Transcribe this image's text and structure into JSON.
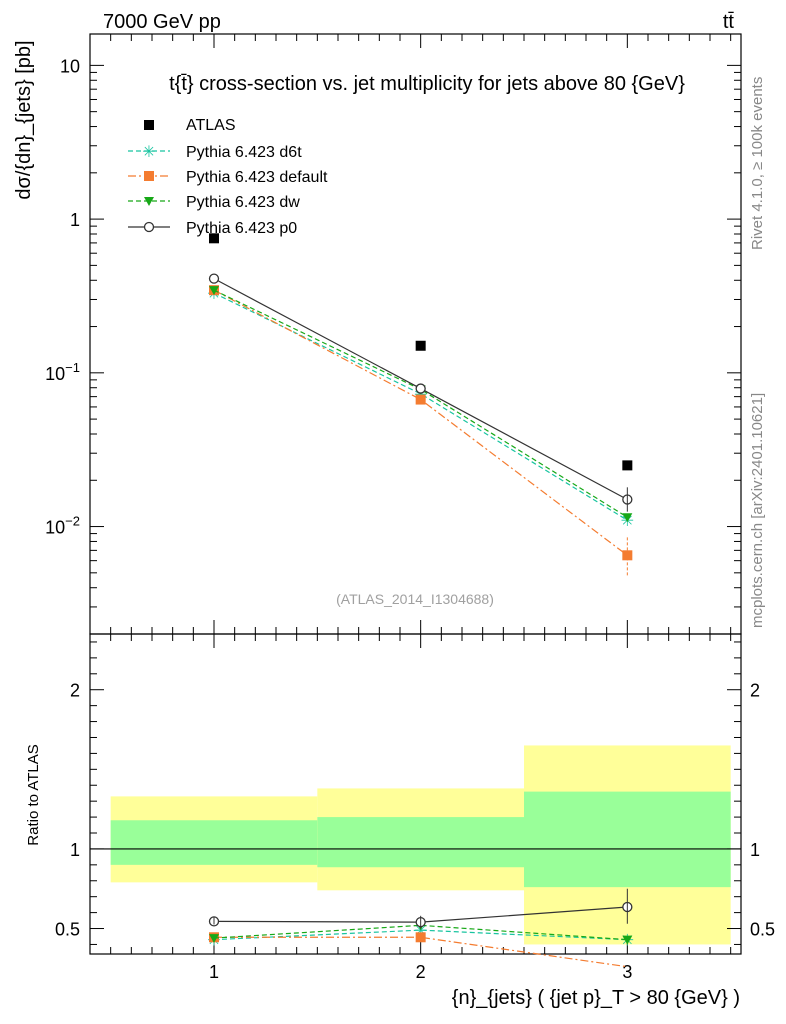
{
  "header": {
    "left": "7000 GeV pp",
    "right": "tt̄"
  },
  "side_labels": {
    "rivet": "Rivet 4.1.0, ≥ 100k events",
    "mcplots": "mcplots.cern.ch [arXiv:2401.10621]"
  },
  "watermark": "(ATLAS_2014_I1304688)",
  "legend": [
    {
      "label": "ATLAS",
      "color": "#000000",
      "marker": "square"
    },
    {
      "label": "Pythia 6.423 d6t",
      "color": "#18c4a0",
      "marker": "star"
    },
    {
      "label": "Pythia 6.423 default",
      "color": "#f47c30",
      "marker": "square"
    },
    {
      "label": "Pythia 6.423 dw",
      "color": "#17a817",
      "marker": "triangle-down"
    },
    {
      "label": "Pythia 6.423 p0",
      "color": "#333333",
      "marker": "open-circle"
    }
  ],
  "chart_data": [
    {
      "type": "line",
      "title": "t{t̄} cross-section vs. jet multiplicity for jets above 80 {GeV}",
      "ylabel": "dσ/{dn}_{jets} [pb]",
      "xlabel": "",
      "yscale": "log",
      "ylim": [
        0.002,
        16
      ],
      "xlim": [
        0.4,
        3.55
      ],
      "ytick_labels": [
        "10",
        "1",
        "10^-1",
        "10^-2"
      ],
      "ytick_values": [
        10,
        1,
        0.1,
        0.01
      ],
      "x": [
        1,
        2,
        3
      ],
      "series": [
        {
          "name": "ATLAS",
          "values": [
            0.75,
            0.15,
            0.025
          ]
        },
        {
          "name": "Pythia 6.423 d6t",
          "values": [
            0.33,
            0.073,
            0.011
          ]
        },
        {
          "name": "Pythia 6.423 default",
          "values": [
            0.345,
            0.067,
            0.0065
          ]
        },
        {
          "name": "Pythia 6.423 dw",
          "values": [
            0.345,
            0.078,
            0.0115
          ]
        },
        {
          "name": "Pythia 6.423 p0",
          "values": [
            0.41,
            0.079,
            0.015
          ]
        }
      ]
    },
    {
      "type": "line",
      "title": "",
      "ylabel": "Ratio to ATLAS",
      "xlabel": "{n}_{jets} ( {jet p}_T > 80 {GeV} )",
      "ylim": [
        0.34,
        2.35
      ],
      "xlim": [
        0.4,
        3.55
      ],
      "xtick_labels": [
        "1",
        "2",
        "3"
      ],
      "ytick_labels": [
        "0.5",
        "1",
        "2"
      ],
      "ytick_values": [
        0.5,
        1,
        2
      ],
      "bands": [
        {
          "x": [
            0.5,
            1.5
          ],
          "inner": [
            0.9,
            1.18
          ],
          "outer": [
            0.79,
            1.33
          ]
        },
        {
          "x": [
            1.5,
            2.5
          ],
          "inner": [
            0.885,
            1.2
          ],
          "outer": [
            0.74,
            1.38
          ]
        },
        {
          "x": [
            2.5,
            3.5
          ],
          "inner": [
            0.76,
            1.36
          ],
          "outer": [
            0.4,
            1.65
          ]
        }
      ],
      "x": [
        1,
        2,
        3
      ],
      "series": [
        {
          "name": "Pythia 6.423 d6t",
          "values": [
            0.43,
            0.49,
            0.43
          ]
        },
        {
          "name": "Pythia 6.423 default",
          "values": [
            0.445,
            0.445,
            0.26
          ]
        },
        {
          "name": "Pythia 6.423 dw",
          "values": [
            0.44,
            0.52,
            0.43
          ]
        },
        {
          "name": "Pythia 6.423 p0",
          "values": [
            0.545,
            0.54,
            0.635
          ]
        }
      ]
    }
  ]
}
